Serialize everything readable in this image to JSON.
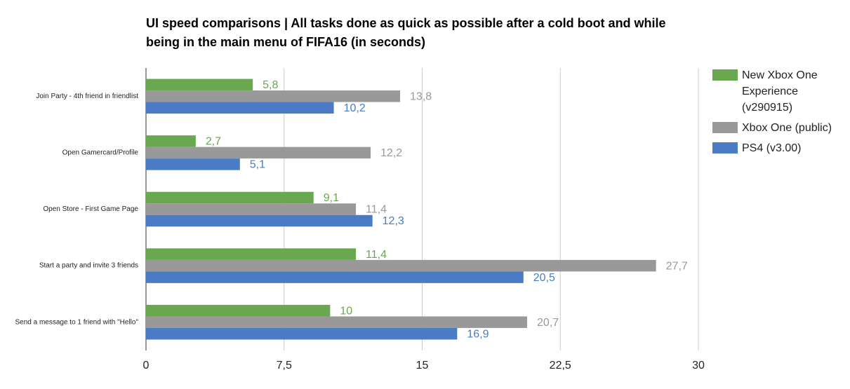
{
  "chart_data": {
    "type": "hbar",
    "title": "UI speed comparisons | All tasks done as quick as possible after a cold boot and while being in the main menu of FIFA16 (in seconds)",
    "categories": [
      "Join Party - 4th friend in friendlist",
      "Open Gamercard/Profile",
      "Open Store - First Game Page",
      "Start a party and invite 3 friends",
      "Send a message to 1 friend with \"Hello\""
    ],
    "series": [
      {
        "name": "New Xbox One Experience (v290915)",
        "color": "#6aa84f",
        "values": [
          5.8,
          2.7,
          9.1,
          11.4,
          10
        ],
        "value_labels": [
          "5,8",
          "2,7",
          "9,1",
          "11,4",
          "10"
        ]
      },
      {
        "name": "Xbox One (public)",
        "color": "#999999",
        "values": [
          13.8,
          12.2,
          11.4,
          27.7,
          20.7
        ],
        "value_labels": [
          "13,8",
          "12,2",
          "11,4",
          "27,7",
          "20,7"
        ]
      },
      {
        "name": "PS4 (v3.00)",
        "color": "#4a7bc4",
        "values": [
          10.2,
          5.1,
          12.3,
          20.5,
          16.9
        ],
        "value_labels": [
          "10,2",
          "5,1",
          "12,3",
          "20,5",
          "16,9"
        ]
      }
    ],
    "xlim": [
      0,
      30
    ],
    "xticks": [
      0,
      {
        "value": 7.5,
        "label": "7,5"
      },
      15,
      {
        "value": 22.5,
        "label": "22,5"
      },
      30
    ],
    "grid": true,
    "legend": "right"
  }
}
